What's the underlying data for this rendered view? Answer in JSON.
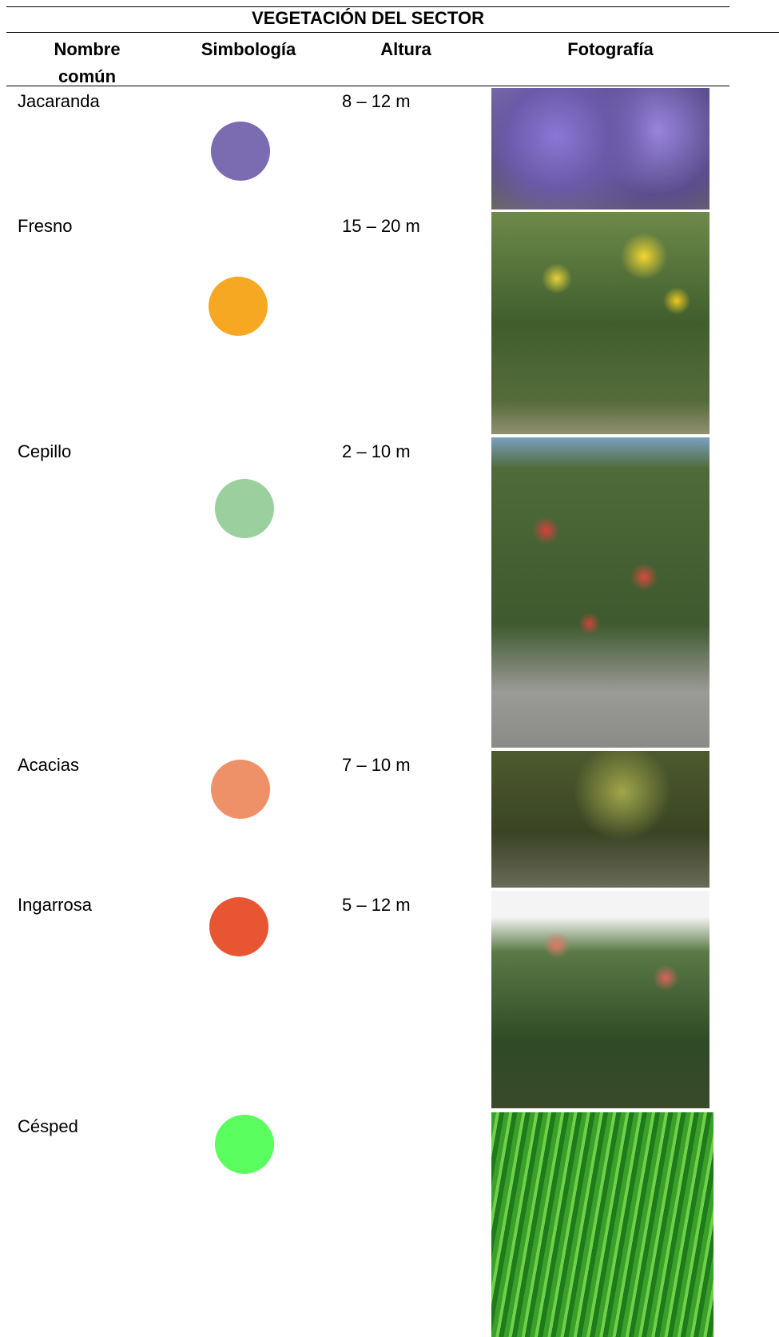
{
  "table": {
    "title": "VEGETACIÓN DEL SECTOR",
    "headers": [
      "Nombre común",
      "Simbología",
      "Altura",
      "Fotografía"
    ],
    "rows": [
      {
        "name": "Jacaranda",
        "color": "#7b6bb0",
        "height": "8 – 12 m"
      },
      {
        "name": "Fresno",
        "color": "#f6a823",
        "height": "15 – 20 m"
      },
      {
        "name": "Cepillo",
        "color": "#9ccf9e",
        "height": "2 – 10 m"
      },
      {
        "name": "Acacias",
        "color": "#ee9169",
        "height": "7 – 10 m"
      },
      {
        "name": "Ingarrosa",
        "color": "#e85532",
        "height": "5 – 12 m"
      },
      {
        "name": "Césped",
        "color": "#5afe5e",
        "height": ""
      }
    ]
  }
}
